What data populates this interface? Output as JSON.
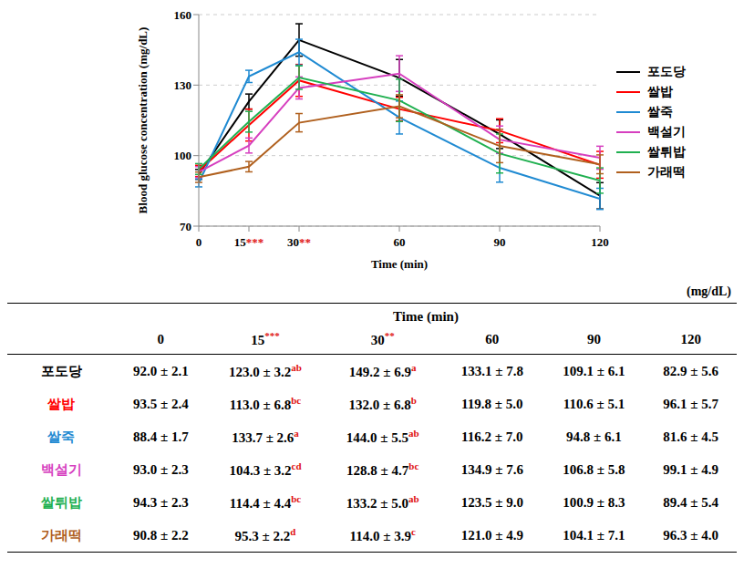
{
  "chart_data": {
    "type": "line",
    "x": [
      0,
      15,
      30,
      60,
      90,
      120
    ],
    "xlim": [
      0,
      120
    ],
    "xticks": [
      0,
      15,
      30,
      60,
      90,
      120
    ],
    "x_marks": [
      {
        "value": 15,
        "text": "***"
      },
      {
        "value": 30,
        "text": "**"
      }
    ],
    "ylim": [
      70,
      160
    ],
    "yticks": [
      70,
      100,
      130,
      160
    ],
    "grid": true,
    "legend": "right",
    "x_label": "Time (min)",
    "y_label": "Blood glucose concentration (mg/dL)",
    "series": [
      {
        "name": "포도당",
        "color": "#000000",
        "values": [
          92.0,
          123.0,
          149.2,
          133.1,
          109.1,
          82.9
        ],
        "errors": [
          2.1,
          3.2,
          6.9,
          7.8,
          6.1,
          5.6
        ]
      },
      {
        "name": "쌀밥",
        "color": "#ff0000",
        "values": [
          93.5,
          113.0,
          132.0,
          119.8,
          110.6,
          96.1
        ],
        "errors": [
          2.4,
          6.8,
          6.8,
          5.0,
          5.1,
          5.7
        ]
      },
      {
        "name": "쌀죽",
        "color": "#1f8ad2",
        "values": [
          88.4,
          133.7,
          144.0,
          116.2,
          94.8,
          81.6
        ],
        "errors": [
          1.7,
          2.6,
          5.5,
          7.0,
          6.1,
          4.5
        ]
      },
      {
        "name": "백설기",
        "color": "#d63fbf",
        "values": [
          93.0,
          104.3,
          128.8,
          134.9,
          106.8,
          99.1
        ],
        "errors": [
          2.3,
          3.2,
          4.7,
          7.6,
          5.8,
          4.9
        ]
      },
      {
        "name": "쌀튀밥",
        "color": "#20b050",
        "values": [
          94.3,
          114.4,
          133.2,
          123.5,
          100.9,
          89.4
        ],
        "errors": [
          2.3,
          4.4,
          5.0,
          9.0,
          8.3,
          5.4
        ]
      },
      {
        "name": "가래떡",
        "color": "#b0601e",
        "values": [
          90.8,
          95.3,
          114.0,
          121.0,
          104.1,
          96.3
        ],
        "errors": [
          2.2,
          2.2,
          3.9,
          4.9,
          7.1,
          4.0
        ]
      }
    ]
  },
  "table": {
    "unit": "(mg/dL)",
    "header": "Time (min)",
    "columns": [
      {
        "label": "0"
      },
      {
        "label": "15",
        "mark": "***"
      },
      {
        "label": "30",
        "mark": "**"
      },
      {
        "label": "60"
      },
      {
        "label": "90"
      },
      {
        "label": "120"
      }
    ],
    "rows": [
      {
        "name": "포도당",
        "color": "#000000",
        "cells": [
          {
            "text": "92.0 ± 2.1"
          },
          {
            "text": "123.0 ± 3.2",
            "sup": "ab"
          },
          {
            "text": "149.2 ± 6.9",
            "sup": "a"
          },
          {
            "text": "133.1 ± 7.8"
          },
          {
            "text": "109.1 ± 6.1"
          },
          {
            "text": "82.9 ± 5.6"
          }
        ]
      },
      {
        "name": "쌀밥",
        "color": "#ff0000",
        "cells": [
          {
            "text": "93.5 ± 2.4"
          },
          {
            "text": "113.0 ± 6.8",
            "sup": "bc"
          },
          {
            "text": "132.0 ± 6.8",
            "sup": "b"
          },
          {
            "text": "119.8 ± 5.0"
          },
          {
            "text": "110.6 ± 5.1"
          },
          {
            "text": "96.1 ± 5.7"
          }
        ]
      },
      {
        "name": "쌀죽",
        "color": "#1f8ad2",
        "cells": [
          {
            "text": "88.4 ± 1.7"
          },
          {
            "text": "133.7 ± 2.6",
            "sup": "a"
          },
          {
            "text": "144.0 ± 5.5",
            "sup": "ab"
          },
          {
            "text": "116.2 ± 7.0"
          },
          {
            "text": "94.8 ± 6.1"
          },
          {
            "text": "81.6 ± 4.5"
          }
        ]
      },
      {
        "name": "백설기",
        "color": "#d63fbf",
        "cells": [
          {
            "text": "93.0 ± 2.3"
          },
          {
            "text": "104.3 ± 3.2",
            "sup": "cd"
          },
          {
            "text": "128.8 ± 4.7",
            "sup": "bc"
          },
          {
            "text": "134.9 ± 7.6"
          },
          {
            "text": "106.8 ± 5.8"
          },
          {
            "text": "99.1 ± 4.9"
          }
        ]
      },
      {
        "name": "쌀튀밥",
        "color": "#20b050",
        "cells": [
          {
            "text": "94.3 ± 2.3"
          },
          {
            "text": "114.4 ± 4.4",
            "sup": "bc"
          },
          {
            "text": "133.2 ± 5.0",
            "sup": "ab"
          },
          {
            "text": "123.5 ± 9.0"
          },
          {
            "text": "100.9 ± 8.3"
          },
          {
            "text": "89.4 ± 5.4"
          }
        ]
      },
      {
        "name": "가래떡",
        "color": "#b0601e",
        "cells": [
          {
            "text": "90.8 ± 2.2"
          },
          {
            "text": "95.3 ± 2.2",
            "sup": "d"
          },
          {
            "text": "114.0 ± 3.9",
            "sup": "c"
          },
          {
            "text": "121.0 ± 4.9"
          },
          {
            "text": "104.1 ± 7.1"
          },
          {
            "text": "96.3 ± 4.0"
          }
        ]
      }
    ]
  }
}
